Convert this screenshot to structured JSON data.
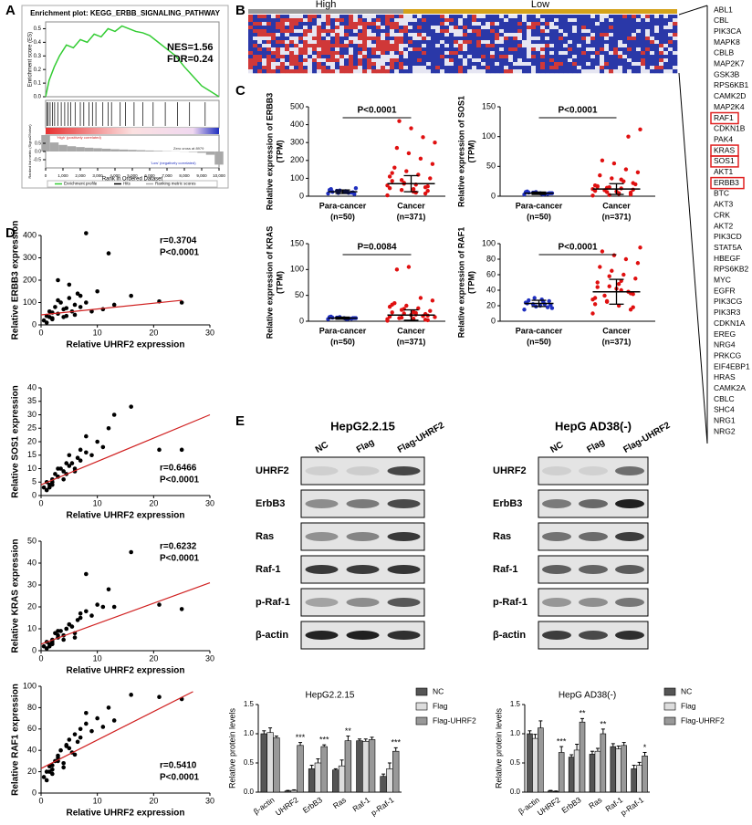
{
  "panel_labels": [
    "A",
    "B",
    "C",
    "D",
    "E"
  ],
  "heatmap": {
    "groups": [
      "High",
      "Low"
    ],
    "genes": [
      "ABL1",
      "CBL",
      "PIK3CA",
      "MAPK8",
      "CBLB",
      "MAP2K7",
      "GSK3B",
      "RPS6KB1",
      "CAMK2D",
      "MAP2K4",
      "RAF1",
      "CDKN1B",
      "PAK4",
      "KRAS",
      "SOS1",
      "AKT1",
      "ERBB3",
      "BTC",
      "AKT3",
      "CRK",
      "AKT2",
      "PIK3CD",
      "STAT5A",
      "HBEGF",
      "RPS6KB2",
      "MYC",
      "EGFR",
      "PIK3CG",
      "PIK3R3",
      "CDKN1A",
      "EREG",
      "NRG4",
      "PRKCG",
      "EIF4EBP1",
      "HRAS",
      "CAMK2A",
      "CBLC",
      "SHC4",
      "NRG1",
      "NRG2"
    ],
    "boxed_genes": [
      "RAF1",
      "KRAS",
      "SOS1",
      "ERBB3"
    ]
  },
  "western_blots": [
    {
      "cell_line": "HepG2.2.15",
      "lanes": [
        "NC",
        "Flag",
        "Flag-UHRF2"
      ],
      "proteins": [
        "UHRF2",
        "ErbB3",
        "Ras",
        "Raf-1",
        "p-Raf-1",
        "β-actin"
      ]
    },
    {
      "cell_line": "HepG AD38(-)",
      "lanes": [
        "NC",
        "Flag",
        "Flag-UHRF2"
      ],
      "proteins": [
        "UHRF2",
        "ErbB3",
        "Ras",
        "Raf-1",
        "p-Raf-1",
        "β-actin"
      ]
    }
  ],
  "chart_data": [
    {
      "type": "line",
      "title": "Enrichment plot: KEGG_ERBB_SIGNALING_PATHWAY",
      "ylabel": "Enrichment score (ES)",
      "xlabel": "Rank in Ordered Dataset",
      "metric_ylabel": "Ranked list metric (Signal2Noise)",
      "annotations": [
        "NES=1.56",
        "FDR=0.24"
      ],
      "metric_notes": [
        "'High' (positively correlated)",
        "Zero cross at 8979",
        "'Low' (negatively correlated)"
      ],
      "legend": [
        "Enrichment profile",
        "Hits",
        "Ranking metric scores"
      ],
      "color": "#33cc33",
      "x": [
        0,
        200,
        500,
        800,
        1200,
        1600,
        2000,
        2400,
        2800,
        3200,
        3600,
        4000,
        4400,
        4800,
        5200,
        5600,
        6000,
        6500,
        7000,
        7500,
        8000,
        8500,
        9000,
        9500,
        10000
      ],
      "values": [
        0,
        0.12,
        0.22,
        0.3,
        0.38,
        0.36,
        0.42,
        0.4,
        0.46,
        0.44,
        0.5,
        0.48,
        0.52,
        0.5,
        0.48,
        0.47,
        0.45,
        0.4,
        0.35,
        0.3,
        0.22,
        0.15,
        0.08,
        0.04,
        0
      ],
      "xlim": [
        0,
        10000
      ],
      "ylim": [
        0,
        0.55
      ],
      "yticks": [
        {
          "value": 0,
          "label": "0.0"
        },
        0.1,
        0.2,
        0.3,
        0.4,
        0.5
      ],
      "xticks": [
        0,
        {
          "value": 1000,
          "label": "1,000"
        },
        {
          "value": 2000,
          "label": "2,000"
        },
        {
          "value": 3000,
          "label": "3,000"
        },
        {
          "value": 4000,
          "label": "4,000"
        },
        {
          "value": 5000,
          "label": "5,000"
        },
        {
          "value": 6000,
          "label": "6,000"
        },
        {
          "value": 7000,
          "label": "7,000"
        },
        {
          "value": 8000,
          "label": "8,000"
        },
        {
          "value": 9000,
          "label": "9,000"
        },
        {
          "value": 10000,
          "label": "10,000"
        }
      ],
      "hits": [
        80,
        150,
        260,
        400,
        520,
        700,
        900,
        1100,
        1300,
        1450,
        1700,
        2000,
        2200,
        2500,
        2700,
        2900,
        3300,
        3600,
        3800,
        4300,
        4600,
        5100,
        5600,
        6200,
        6900,
        7600,
        8300,
        9200
      ],
      "metric": {
        "x": [
          0,
          500,
          1000,
          1500,
          2000,
          2500,
          3000,
          3500,
          4000,
          4500,
          5000,
          5500,
          6000,
          6500,
          7000,
          7500,
          8000,
          8500,
          9000,
          9500,
          10000
        ],
        "values": [
          1.0,
          0.55,
          0.4,
          0.32,
          0.27,
          0.23,
          0.2,
          0.17,
          0.14,
          0.12,
          0.1,
          0.08,
          0.06,
          0.04,
          0.02,
          0.01,
          -0.01,
          -0.03,
          -0.08,
          -0.2,
          -0.8
        ],
        "ylim": [
          -1,
          1
        ],
        "yticks": [
          0.5,
          {
            "value": 0,
            "label": "0.0"
          },
          -0.5
        ]
      }
    },
    {
      "type": "dot",
      "ylabel": "Relative expression of ERBB3",
      "yunit": "(TPM)",
      "p_label": "P<0.0001",
      "categories": [
        "Para-cancer",
        "Cancer"
      ],
      "category_notes": [
        "(n=50)",
        "(n=371)"
      ],
      "colors": [
        "#1f2fbf",
        "#e01010"
      ],
      "values": [
        [
          15,
          20,
          25,
          30,
          35,
          22,
          28,
          18,
          40,
          12,
          26,
          32,
          24,
          45,
          19
        ],
        [
          5,
          15,
          25,
          35,
          45,
          55,
          65,
          75,
          85,
          100,
          120,
          140,
          160,
          180,
          210,
          240,
          270,
          300,
          330,
          380,
          420,
          60,
          50,
          40,
          90,
          110,
          30,
          20,
          70,
          130
        ]
      ],
      "means": [
        25,
        70
      ],
      "sds": [
        10,
        45
      ],
      "ylim": [
        0,
        500
      ],
      "yticks": [
        0,
        100,
        200,
        300,
        400,
        500
      ]
    },
    {
      "type": "dot",
      "ylabel": "Relative expression of SOS1",
      "yunit": "(TPM)",
      "p_label": "P<0.0001",
      "categories": [
        "Para-cancer",
        "Cancer"
      ],
      "category_notes": [
        "(n=50)",
        "(n=371)"
      ],
      "colors": [
        "#1f2fbf",
        "#e01010"
      ],
      "values": [
        [
          3,
          4,
          5,
          6,
          7,
          5,
          4,
          6,
          8,
          5,
          3,
          7,
          6,
          5,
          4
        ],
        [
          1,
          3,
          5,
          7,
          9,
          11,
          13,
          15,
          17,
          20,
          25,
          30,
          35,
          40,
          45,
          55,
          60,
          112,
          100,
          8,
          10,
          12,
          6,
          4,
          14,
          18,
          22,
          28,
          2,
          16
        ]
      ],
      "means": [
        5,
        12
      ],
      "sds": [
        2,
        9
      ],
      "ylim": [
        0,
        150
      ],
      "yticks": [
        0,
        50,
        100,
        150
      ]
    },
    {
      "type": "dot",
      "ylabel": "Relative expression of KRAS",
      "yunit": "(TPM)",
      "p_label": "P=0.0084",
      "categories": [
        "Para-cancer",
        "Cancer"
      ],
      "category_notes": [
        "(n=50)",
        "(n=371)"
      ],
      "colors": [
        "#1f2fbf",
        "#e01010"
      ],
      "values": [
        [
          4,
          5,
          6,
          7,
          8,
          6,
          5,
          7,
          9,
          6,
          4,
          8,
          7,
          6,
          5
        ],
        [
          1,
          3,
          5,
          7,
          9,
          11,
          13,
          15,
          17,
          20,
          25,
          30,
          35,
          40,
          45,
          105,
          100,
          8,
          10,
          12,
          6,
          4,
          14,
          18,
          22,
          28,
          2,
          16,
          24,
          32
        ]
      ],
      "means": [
        6,
        12
      ],
      "sds": [
        2,
        10
      ],
      "ylim": [
        0,
        150
      ],
      "yticks": [
        0,
        50,
        100,
        150
      ]
    },
    {
      "type": "dot",
      "ylabel": "Relative expression of RAF1",
      "yunit": "(TPM)",
      "p_label": "P<0.0001",
      "categories": [
        "Para-cancer",
        "Cancer"
      ],
      "category_notes": [
        "(n=50)",
        "(n=371)"
      ],
      "colors": [
        "#1f2fbf",
        "#e01010"
      ],
      "values": [
        [
          15,
          18,
          20,
          22,
          24,
          26,
          28,
          30,
          23,
          21,
          25,
          19,
          27,
          17,
          22
        ],
        [
          10,
          15,
          20,
          25,
          30,
          35,
          40,
          45,
          50,
          55,
          60,
          65,
          70,
          75,
          80,
          85,
          90,
          95,
          38,
          42,
          33,
          28,
          36,
          48,
          26,
          22,
          18,
          52,
          58,
          44
        ]
      ],
      "means": [
        23,
        38
      ],
      "sds": [
        4,
        16
      ],
      "ylim": [
        0,
        100
      ],
      "yticks": [
        0,
        20,
        40,
        60,
        80,
        100
      ]
    },
    {
      "type": "scatter",
      "xlabel": "Relative UHRF2 expression",
      "ylabel": "Relative ERBB3 expression",
      "r_label": "r=0.3704",
      "p_label": "P<0.0001",
      "label_corner": "upper right",
      "x": [
        0.5,
        1,
        1.5,
        2,
        2.5,
        3,
        3.5,
        4,
        4.5,
        5,
        5.5,
        6,
        6.5,
        7,
        8,
        9,
        10,
        11,
        12,
        1,
        2,
        3,
        4,
        5,
        6,
        7,
        3,
        2,
        1.5,
        4.5,
        8,
        13,
        21,
        25,
        16
      ],
      "values": [
        20,
        40,
        60,
        30,
        80,
        50,
        100,
        70,
        40,
        120,
        60,
        90,
        140,
        80,
        100,
        60,
        150,
        70,
        320,
        10,
        25,
        200,
        35,
        180,
        45,
        130,
        110,
        55,
        35,
        75,
        410,
        90,
        105,
        100,
        130
      ],
      "fit": {
        "x": [
          0,
          25
        ],
        "values": [
          45,
          110
        ]
      },
      "xlim": [
        0,
        30
      ],
      "ylim": [
        0,
        400
      ],
      "xticks": [
        0,
        10,
        20,
        30
      ],
      "yticks": [
        0,
        100,
        200,
        300,
        400
      ]
    },
    {
      "type": "scatter",
      "xlabel": "Relative UHRF2 expression",
      "ylabel": "Relative SOS1 expression",
      "r_label": "r=0.6466",
      "p_label": "P<0.0001",
      "label_corner": "lower right",
      "x": [
        0.5,
        1,
        1.5,
        2,
        2.5,
        3,
        3.5,
        4,
        4.5,
        5,
        5.5,
        6,
        6.5,
        7,
        8,
        9,
        10,
        11,
        12,
        1,
        2,
        3,
        4,
        5,
        6,
        7,
        3,
        2,
        1.5,
        4.5,
        8,
        13,
        21,
        25,
        16
      ],
      "values": [
        3,
        5,
        4,
        6,
        8,
        7,
        10,
        9,
        8,
        11,
        12,
        10,
        14,
        13,
        16,
        15,
        20,
        18,
        25,
        2,
        4,
        10,
        6,
        15,
        9,
        17,
        7,
        5,
        3,
        12,
        22,
        30,
        17,
        17,
        33
      ],
      "fit": {
        "x": [
          0,
          30
        ],
        "values": [
          4,
          30
        ]
      },
      "xlim": [
        0,
        30
      ],
      "ylim": [
        0,
        40
      ],
      "xticks": [
        0,
        10,
        20,
        30
      ],
      "yticks": [
        0,
        5,
        10,
        15,
        20,
        25,
        30,
        35,
        40
      ]
    },
    {
      "type": "scatter",
      "xlabel": "Relative UHRF2 expression",
      "ylabel": "Relative KRAS expression",
      "r_label": "r=0.6232",
      "p_label": "P<0.0001",
      "label_corner": "upper right",
      "x": [
        0.5,
        1,
        1.5,
        2,
        2.5,
        3,
        3.5,
        4,
        4.5,
        5,
        5.5,
        6,
        6.5,
        7,
        8,
        9,
        10,
        11,
        12,
        1,
        2,
        3,
        4,
        5,
        6,
        7,
        3,
        2,
        1.5,
        4.5,
        8,
        13,
        21,
        25,
        16
      ],
      "values": [
        2,
        4,
        3,
        5,
        8,
        6,
        9,
        7,
        10,
        12,
        11,
        8,
        14,
        15,
        18,
        16,
        21,
        20,
        28,
        1,
        3,
        7,
        5,
        12,
        6,
        17,
        9,
        4,
        2,
        10,
        35,
        20,
        21,
        19,
        45
      ],
      "fit": {
        "x": [
          0,
          30
        ],
        "values": [
          3,
          31
        ]
      },
      "xlim": [
        0,
        30
      ],
      "ylim": [
        0,
        50
      ],
      "xticks": [
        0,
        10,
        20,
        30
      ],
      "yticks": [
        0,
        10,
        20,
        30,
        40,
        50
      ]
    },
    {
      "type": "scatter",
      "xlabel": "Relative UHRF2 expression",
      "ylabel": "Relative RAF1 expression",
      "r_label": "r=0.5410",
      "p_label": "P<0.0001",
      "label_corner": "lower right",
      "x": [
        0.5,
        1,
        1.5,
        2,
        2.5,
        3,
        3.5,
        4,
        4.5,
        5,
        5.5,
        6,
        6.5,
        7,
        8,
        9,
        10,
        11,
        12,
        1,
        2,
        3,
        4,
        5,
        6,
        7,
        3,
        2,
        1.5,
        4.5,
        8,
        13,
        21,
        25,
        16
      ],
      "values": [
        15,
        20,
        25,
        22,
        30,
        35,
        40,
        28,
        45,
        50,
        38,
        55,
        48,
        60,
        65,
        58,
        70,
        62,
        80,
        12,
        18,
        30,
        24,
        42,
        36,
        52,
        33,
        26,
        20,
        44,
        75,
        68,
        90,
        88,
        92
      ],
      "fit": {
        "x": [
          0,
          27
        ],
        "values": [
          23,
          95
        ]
      },
      "xlim": [
        0,
        30
      ],
      "ylim": [
        0,
        100
      ],
      "xticks": [
        0,
        10,
        20,
        30
      ],
      "yticks": [
        0,
        20,
        40,
        60,
        80,
        100
      ]
    },
    {
      "type": "bar",
      "title": "HepG2.2.15",
      "ylabel": "Relative protein levels",
      "categories": [
        "β-actin",
        "UHRF2",
        "ErbB3",
        "Ras",
        "Raf-1",
        "p-Raf-1"
      ],
      "series": [
        {
          "name": "NC",
          "color": "#555555",
          "values": [
            1.0,
            0.02,
            0.4,
            0.38,
            0.88,
            0.27
          ],
          "errors": [
            0.05,
            0.01,
            0.06,
            0.02,
            0.03,
            0.04
          ]
        },
        {
          "name": "Flag",
          "color": "#dddddd",
          "values": [
            1.02,
            0.03,
            0.5,
            0.45,
            0.87,
            0.4
          ],
          "errors": [
            0.08,
            0.01,
            0.07,
            0.1,
            0.04,
            0.1
          ]
        },
        {
          "name": "Flag-UHRF2",
          "color": "#999999",
          "values": [
            0.93,
            0.8,
            0.78,
            0.88,
            0.9,
            0.7
          ],
          "errors": [
            0.03,
            0.05,
            0.03,
            0.08,
            0.04,
            0.06
          ]
        }
      ],
      "annotations": [
        null,
        "***",
        "***",
        "**",
        null,
        "***"
      ],
      "ylim": [
        0,
        1.5
      ],
      "yticks": [
        {
          "value": 0,
          "label": "0.0"
        },
        0.5,
        {
          "value": 1,
          "label": "1.0"
        },
        1.5
      ]
    },
    {
      "type": "bar",
      "title": "HepG AD38(-)",
      "ylabel": "Relative protein levels",
      "categories": [
        "β-actin",
        "UHRF2",
        "ErbB3",
        "Ras",
        "Raf-1",
        "p-Raf-1"
      ],
      "series": [
        {
          "name": "NC",
          "color": "#555555",
          "values": [
            1.0,
            0.02,
            0.6,
            0.65,
            0.78,
            0.4
          ],
          "errors": [
            0.05,
            0.01,
            0.04,
            0.05,
            0.05,
            0.06
          ]
        },
        {
          "name": "Flag",
          "color": "#dddddd",
          "values": [
            0.92,
            0.01,
            0.72,
            0.7,
            0.74,
            0.46
          ],
          "errors": [
            0.07,
            0.01,
            0.1,
            0.05,
            0.05,
            0.05
          ]
        },
        {
          "name": "Flag-UHRF2",
          "color": "#999999",
          "values": [
            1.1,
            0.68,
            1.2,
            1.0,
            0.8,
            0.62
          ],
          "errors": [
            0.12,
            0.1,
            0.06,
            0.08,
            0.05,
            0.06
          ]
        }
      ],
      "annotations": [
        null,
        "***",
        "**",
        "**",
        null,
        "*"
      ],
      "ylim": [
        0,
        1.5
      ],
      "yticks": [
        {
          "value": 0,
          "label": "0.0"
        },
        0.5,
        {
          "value": 1,
          "label": "1.0"
        },
        1.5
      ]
    }
  ]
}
